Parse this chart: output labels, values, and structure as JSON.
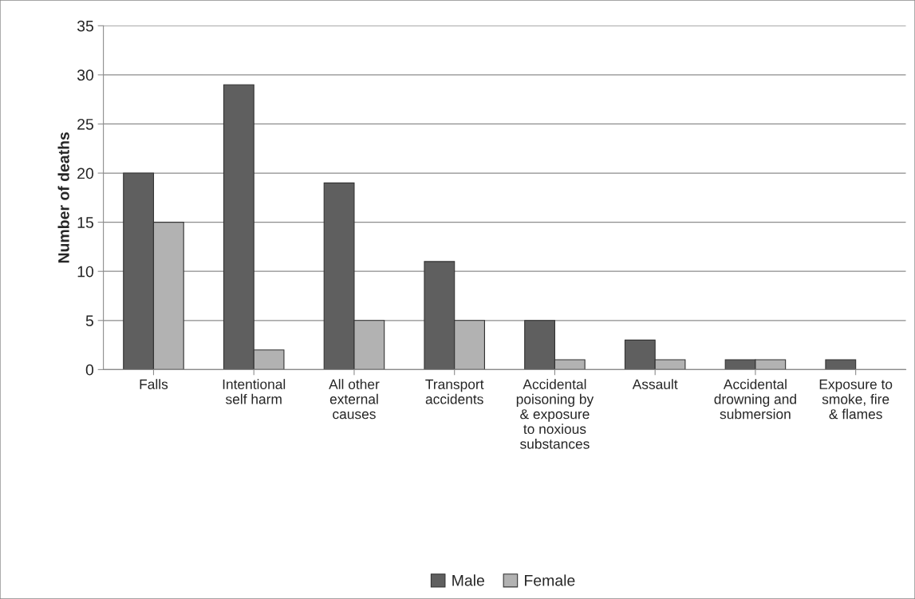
{
  "chart_data": {
    "type": "bar",
    "ylabel": "Number of deaths",
    "categories": [
      "Falls",
      "Intentional self harm",
      "All other external causes",
      "Transport accidents",
      "Accidental poisoning by & exposure to noxious substances",
      "Assault",
      "Accidental drowning and submersion",
      "Exposure to smoke, fire & flames"
    ],
    "series": [
      {
        "name": "Male",
        "color": "#5f5f5f",
        "values": [
          20,
          29,
          19,
          11,
          5,
          3,
          1,
          1
        ]
      },
      {
        "name": "Female",
        "color": "#b2b2b2",
        "values": [
          15,
          2,
          5,
          5,
          1,
          1,
          1,
          null
        ]
      }
    ],
    "ylim": [
      0,
      35
    ],
    "yticks": [
      0,
      5,
      10,
      15,
      20,
      25,
      30,
      35
    ],
    "grid": "y",
    "legend": "bottom"
  }
}
